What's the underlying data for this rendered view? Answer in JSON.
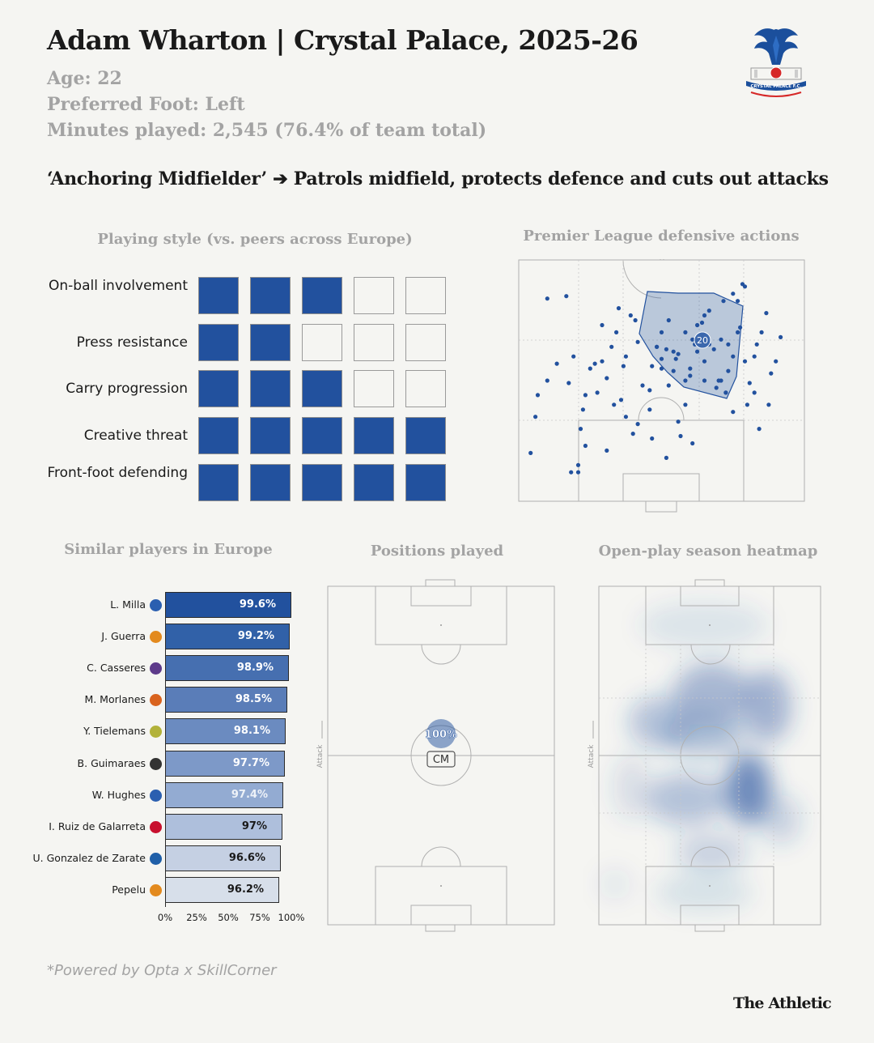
{
  "header": {
    "title": "Adam Wharton | Crystal Palace, 2025-26",
    "age": "Age: 22",
    "foot": "Preferred Foot: Left",
    "minutes": "Minutes played: 2,545 (76.4% of team total)",
    "role": "‘Anchoring Midfielder’ ➔ Patrols midfield, protects defence and cuts out attacks",
    "crest_text": "CRYSTAL PALACE F.C."
  },
  "colors": {
    "accent": "#22519e",
    "muted_text": "#a3a3a3",
    "background": "#f5f5f2",
    "pitch_line": "#b0b0b0"
  },
  "sections": {
    "playing_style": "Playing style (vs. peers across Europe)",
    "defensive_actions": "Premier League defensive actions",
    "similar_players": "Similar players in Europe",
    "positions_played": "Positions played",
    "heatmap": "Open-play season heatmap"
  },
  "attack_label": "Attack",
  "footnote": "*Powered by Opta x SkillCorner",
  "brand": "The Athletic",
  "chart_data": [
    {
      "type": "table",
      "title": "Playing style (vs. peers across Europe)",
      "max": 5,
      "rows": [
        {
          "label": "On-ball involvement",
          "value": 3
        },
        {
          "label": "Press resistance",
          "value": 2
        },
        {
          "label": "Carry progression",
          "value": 3
        },
        {
          "label": "Creative threat",
          "value": 5
        },
        {
          "label": "Front-foot defending",
          "value": 5
        }
      ]
    },
    {
      "type": "scatter",
      "title": "Premier League defensive actions",
      "total_label": "20",
      "x": [
        5,
        7,
        8,
        12,
        16,
        21,
        23,
        22,
        25,
        27,
        26,
        28,
        30,
        33,
        35,
        37,
        35,
        39,
        41,
        42,
        43,
        45,
        47,
        49,
        50,
        52,
        55,
        56,
        58,
        60,
        62,
        63,
        65,
        67,
        70,
        72,
        73,
        75,
        78,
        80,
        82,
        85,
        88,
        90,
        92,
        95,
        97,
        99,
        100,
        102,
        104,
        106,
        108,
        110,
        12,
        28,
        32,
        45,
        48,
        55,
        60,
        63,
        67,
        70,
        72,
        75,
        77,
        80,
        85,
        87,
        90,
        92,
        95,
        40,
        44,
        58,
        66,
        70,
        74,
        78,
        83,
        88,
        93,
        96,
        99,
        20,
        25,
        37,
        50,
        56,
        62,
        68,
        73,
        86,
        90,
        94,
        101,
        105,
        60,
        65,
        78,
        84,
        87
      ],
      "y": [
        20,
        35,
        44,
        50,
        57,
        49,
        60,
        12,
        15,
        38,
        30,
        23,
        55,
        45,
        58,
        51,
        73,
        64,
        70,
        80,
        42,
        60,
        77,
        75,
        66,
        48,
        38,
        56,
        64,
        70,
        63,
        75,
        54,
        61,
        50,
        52,
        67,
        73,
        77,
        79,
        63,
        67,
        54,
        60,
        70,
        58,
        49,
        60,
        65,
        70,
        78,
        53,
        58,
        68,
        84,
        44,
        57,
        35,
        28,
        46,
        55,
        48,
        33,
        40,
        55,
        62,
        74,
        65,
        50,
        45,
        37,
        83,
        89,
        40,
        56,
        64,
        59,
        70,
        65,
        58,
        47,
        65,
        72,
        40,
        45,
        85,
        12,
        21,
        32,
        26,
        18,
        27,
        24,
        83,
        86,
        90,
        30,
        40,
        59,
        62,
        50,
        50,
        45
      ]
    },
    {
      "type": "table",
      "title": "Positions played",
      "positions": [
        {
          "position": "CM",
          "share": "100%"
        }
      ]
    },
    {
      "type": "heatmap",
      "title": "Open-play season heatmap"
    },
    {
      "type": "bar",
      "title": "Similar players in Europe",
      "orientation": "horizontal",
      "categories": [
        "L. Milla",
        "J. Guerra",
        "C. Casseres",
        "M. Morlanes",
        "Y. Tielemans",
        "B. Guimaraes",
        "W. Hughes",
        "I. Ruiz de Galarreta",
        "U. Gonzalez de Zarate",
        "Pepelu"
      ],
      "values": [
        99.6,
        99.2,
        98.9,
        98.5,
        98.1,
        97.7,
        97.4,
        97,
        96.6,
        96.2
      ],
      "value_labels": [
        "99.6%",
        "99.2%",
        "98.9%",
        "98.5%",
        "98.1%",
        "97.7%",
        "97.4%",
        "97%",
        "96.6%",
        "96.2%"
      ],
      "club_badges": [
        "getafe-badge",
        "valencia-badge",
        "toulouse-badge",
        "mallorca-badge",
        "aston-villa-badge",
        "newcastle-badge",
        "crystal-palace-badge",
        "athletic-club-badge",
        "espanyol-badge",
        "valencia-badge"
      ],
      "xticks": [
        "0%",
        "25%",
        "50%",
        "75%",
        "100%"
      ],
      "xlim": [
        0,
        100
      ]
    }
  ]
}
